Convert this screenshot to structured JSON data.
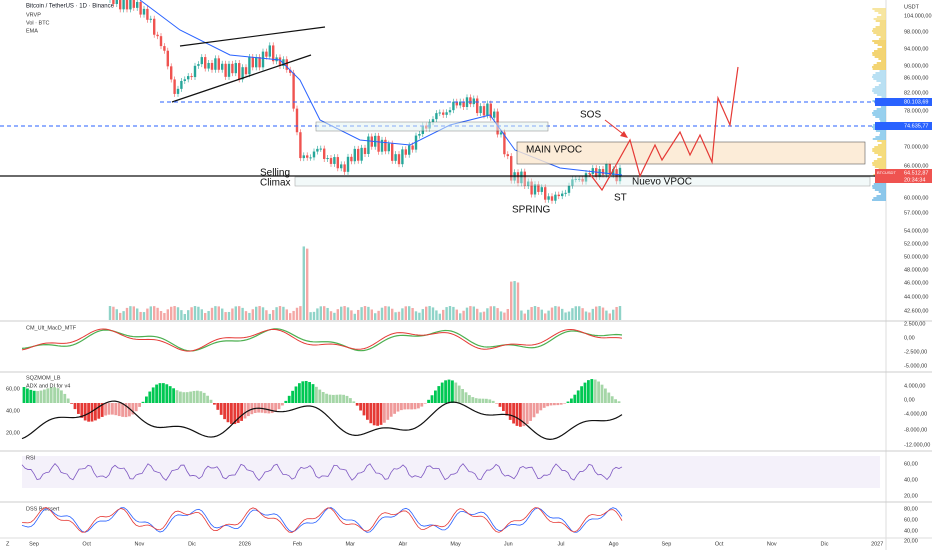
{
  "header": {
    "title": "Bitcoin / TetherUS · 1D · Binance",
    "indicators": [
      "VRVP",
      "Vol · BTC",
      "EMA"
    ]
  },
  "price_axis": {
    "currency": "USDT",
    "labels": [
      "104.000,00",
      "98.000,00",
      "94.000,00",
      "90.000,00",
      "86.000,00",
      "82.000,00",
      "78.000,00",
      "70.000,00",
      "66.000,00",
      "60.000,00",
      "57.000,00",
      "54.000,00",
      "52.000,00",
      "50.000,00",
      "48.000,00",
      "46.000,00",
      "44.000,00",
      "42.600,00"
    ],
    "tags": [
      {
        "label": "80.103,69"
      },
      {
        "label": "74.635,77"
      },
      {
        "label": "64.512,87",
        "symbol": "BTCUSDT",
        "timer": "20:34:34"
      }
    ]
  },
  "annotations": {
    "selling_climax": [
      "Selling",
      "Climax"
    ],
    "sos": "SOS",
    "main_vpoc": "MAIN VPOC",
    "nuevo_vpoc": "Nuevo VPOC",
    "spring": "SPRING",
    "st": "ST"
  },
  "panes": [
    {
      "names": [
        "CM_Ult_MacD_MTF"
      ],
      "right_labels": [
        "2.500,00",
        "0,00",
        "-2.500,00",
        "-5.000,00"
      ]
    },
    {
      "names": [
        "SQZMOM_LB",
        "ADX and DI for v4"
      ],
      "left_labels": [
        "60,00",
        "40,00",
        "20,00"
      ],
      "right_labels": [
        "4.000,00",
        "0,00",
        "-4.000,00",
        "-8.000,00",
        "-12.000,00"
      ]
    },
    {
      "names": [
        "RSI"
      ],
      "right_labels": [
        "60,00",
        "40,00",
        "20,00"
      ]
    },
    {
      "names": [
        "DSS Bressert"
      ],
      "right_labels": [
        "80,00",
        "60,00",
        "40,00",
        "20,00"
      ]
    }
  ],
  "time_axis": {
    "labels": [
      "Sep",
      "Oct",
      "Nov",
      "Dic",
      "2026",
      "Feb",
      "Mar",
      "Abr",
      "May",
      "Jun",
      "Jul",
      "Ago",
      "Sep",
      "Oct",
      "Nov",
      "Dic",
      "2027"
    ]
  },
  "corner": "Z"
}
